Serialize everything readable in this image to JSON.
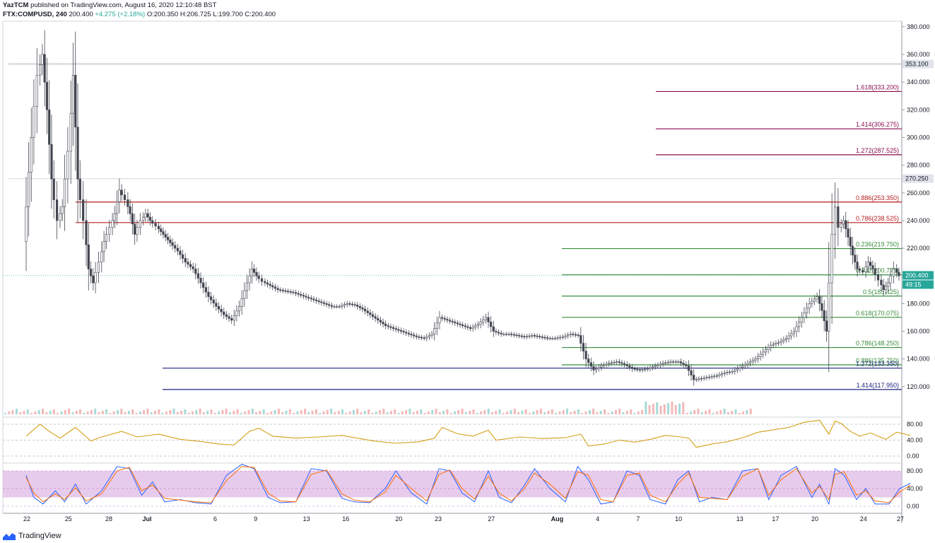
{
  "header": {
    "author": "YazTCM",
    "published": "published on TradingView.com, August 16, 2020 12:10:48 BST",
    "symbol": "FTX:COMPUSD, 240",
    "price": "200.400",
    "change": "+4.275 (+2.18%)",
    "o": "O:200.350",
    "h": "H:206.725",
    "l": "L:199.700",
    "c": "C:200.400"
  },
  "branding": {
    "logo_text": "TradingView",
    "logo_icon": "tradingview-icon"
  },
  "colors": {
    "up": "#26a69a",
    "down": "#ef5350",
    "candle": "#434651",
    "fib_ext": "#880e4f",
    "fib_red": "#b71c1c",
    "fib_green": "#388e3c",
    "fib_blue": "#1a237e",
    "rsi": "#d4a017",
    "stoch_k": "#2962ff",
    "stoch_d": "#ff6d00",
    "stoch_band": "#e1bee7"
  },
  "chart_data": {
    "type": "candlestick",
    "symbol": "FTX:COMPUSD",
    "interval": "240",
    "y_axis": {
      "ticks": [
        "380.000",
        "360.000",
        "340.000",
        "320.000",
        "300.000",
        "280.000",
        "260.000",
        "240.000",
        "220.000",
        "200.000",
        "180.000",
        "160.000",
        "140.000",
        "120.000"
      ],
      "range": [
        100,
        384
      ]
    },
    "x_axis": {
      "ticks": [
        "22",
        "25",
        "28",
        "Jul",
        "6",
        "9",
        "13",
        "16",
        "20",
        "23",
        "27",
        "Aug",
        "4",
        "7",
        "10",
        "13",
        "17",
        "20",
        "24",
        "27"
      ]
    },
    "price_labels": [
      {
        "text": "353.100",
        "value": 353.1
      },
      {
        "text": "270.250",
        "value": 270.25
      },
      {
        "text": "200.400",
        "value": 200.4,
        "highlight": true
      },
      {
        "text": "49:15",
        "value": 0
      }
    ],
    "levels": [
      {
        "label": "1.618(333.200)",
        "value": 333.2,
        "color": "fib_ext",
        "from_day": 22.8
      },
      {
        "label": "1.414(306.275)",
        "value": 306.275,
        "color": "fib_ext",
        "from_day": 22.8
      },
      {
        "label": "1.272(287.525)",
        "value": 287.525,
        "color": "fib_ext",
        "from_day": 22.8
      },
      {
        "label": "0.886(253.350)",
        "value": 253.35,
        "color": "fib_red",
        "from_day": -4.5
      },
      {
        "label": "0.786(238.525)",
        "value": 238.525,
        "color": "fib_red",
        "from_day": -4.5
      },
      {
        "label": "0.236(219.750)",
        "value": 219.75,
        "color": "fib_green",
        "from_day": 18.8
      },
      {
        "label": "0.382(200.775)",
        "value": 200.775,
        "color": "fib_green",
        "from_day": 18.8
      },
      {
        "label": "0.5(185.425)",
        "value": 185.425,
        "color": "fib_green",
        "from_day": 18.8
      },
      {
        "label": "0.618(170.075)",
        "value": 170.075,
        "color": "fib_green",
        "from_day": 18.8
      },
      {
        "label": "0.786(148.250)",
        "value": 148.25,
        "color": "fib_green",
        "from_day": 18.8
      },
      {
        "label": "0.886(135.750)",
        "value": 135.75,
        "color": "fib_green",
        "from_day": 18.8
      },
      {
        "label": "1.272(133.350)",
        "value": 133.35,
        "color": "fib_blue",
        "from_day": -1.2
      },
      {
        "label": "1.414(117.950)",
        "value": 117.95,
        "color": "fib_blue",
        "from_day": -1.2
      }
    ],
    "ohlc_path": [
      [
        -9.5,
        225
      ],
      [
        -9.0,
        300
      ],
      [
        -8.6,
        345
      ],
      [
        -8.3,
        360
      ],
      [
        -8.0,
        320
      ],
      [
        -7.7,
        270
      ],
      [
        -7.3,
        240
      ],
      [
        -7.0,
        250
      ],
      [
        -6.6,
        290
      ],
      [
        -6.3,
        345
      ],
      [
        -6.0,
        270
      ],
      [
        -5.6,
        240
      ],
      [
        -5.3,
        205
      ],
      [
        -5.0,
        195
      ],
      [
        -4.6,
        210
      ],
      [
        -4.3,
        225
      ],
      [
        -3.9,
        235
      ],
      [
        -3.6,
        245
      ],
      [
        -3.3,
        262
      ],
      [
        -2.9,
        255
      ],
      [
        -2.6,
        245
      ],
      [
        -2.3,
        230
      ],
      [
        -1.9,
        240
      ],
      [
        -1.6,
        245
      ],
      [
        -1.3,
        240
      ],
      [
        -0.9,
        236
      ],
      [
        -0.6,
        232
      ],
      [
        -0.3,
        228
      ],
      [
        0.0,
        224
      ],
      [
        0.5,
        218
      ],
      [
        1.0,
        210
      ],
      [
        1.5,
        205
      ],
      [
        2.0,
        195
      ],
      [
        2.5,
        185
      ],
      [
        3.0,
        178
      ],
      [
        3.5,
        172
      ],
      [
        4.0,
        168
      ],
      [
        4.5,
        178
      ],
      [
        5.0,
        195
      ],
      [
        5.3,
        205
      ],
      [
        5.6,
        200
      ],
      [
        6.0,
        196
      ],
      [
        6.5,
        193
      ],
      [
        7.0,
        190
      ],
      [
        7.5,
        189
      ],
      [
        8.0,
        188
      ],
      [
        8.5,
        186
      ],
      [
        9.0,
        184
      ],
      [
        9.5,
        182
      ],
      [
        10.0,
        180
      ],
      [
        10.5,
        178
      ],
      [
        11.0,
        178
      ],
      [
        11.5,
        180
      ],
      [
        12.0,
        179
      ],
      [
        12.5,
        176
      ],
      [
        13.0,
        172
      ],
      [
        13.5,
        168
      ],
      [
        14.0,
        164
      ],
      [
        14.5,
        162
      ],
      [
        15.0,
        160
      ],
      [
        15.5,
        158
      ],
      [
        16.0,
        156
      ],
      [
        16.5,
        155
      ],
      [
        17.0,
        158
      ],
      [
        17.5,
        170
      ],
      [
        18.0,
        168
      ],
      [
        18.5,
        166
      ],
      [
        19.0,
        164
      ],
      [
        19.5,
        162
      ],
      [
        20.0,
        165
      ],
      [
        20.5,
        170
      ],
      [
        21.0,
        160
      ],
      [
        21.5,
        158
      ],
      [
        22.0,
        158
      ],
      [
        22.5,
        157
      ],
      [
        23.0,
        156
      ],
      [
        23.5,
        157
      ],
      [
        24.0,
        156
      ],
      [
        24.5,
        155
      ],
      [
        25.0,
        155
      ],
      [
        25.5,
        156
      ],
      [
        26.0,
        158
      ],
      [
        26.5,
        157
      ],
      [
        27.0,
        140
      ],
      [
        27.5,
        132
      ],
      [
        28.0,
        135
      ],
      [
        28.5,
        137
      ],
      [
        29.0,
        138
      ],
      [
        29.5,
        136
      ],
      [
        30.0,
        133
      ],
      [
        30.5,
        132
      ],
      [
        31.0,
        133
      ],
      [
        31.5,
        135
      ],
      [
        32.0,
        137
      ],
      [
        32.5,
        138
      ],
      [
        33.0,
        138
      ],
      [
        33.5,
        135
      ],
      [
        34.0,
        125
      ],
      [
        34.5,
        126
      ],
      [
        35.0,
        127
      ],
      [
        35.5,
        128
      ],
      [
        36.0,
        130
      ],
      [
        36.5,
        131
      ],
      [
        37.0,
        134
      ],
      [
        37.5,
        137
      ],
      [
        38.0,
        140
      ],
      [
        38.5,
        145
      ],
      [
        39.0,
        150
      ],
      [
        39.5,
        152
      ],
      [
        40.0,
        155
      ],
      [
        40.5,
        160
      ],
      [
        41.0,
        170
      ],
      [
        41.5,
        180
      ],
      [
        42.0,
        185
      ],
      [
        42.3,
        175
      ],
      [
        42.6,
        160
      ],
      [
        42.8,
        195
      ],
      [
        43.0,
        230
      ],
      [
        43.2,
        250
      ],
      [
        43.4,
        235
      ],
      [
        43.7,
        240
      ],
      [
        44.0,
        228
      ],
      [
        44.3,
        215
      ],
      [
        44.6,
        205
      ],
      [
        45.0,
        203
      ],
      [
        45.3,
        210
      ],
      [
        45.6,
        205
      ],
      [
        46.0,
        197
      ],
      [
        46.3,
        190
      ],
      [
        46.6,
        195
      ],
      [
        47.0,
        205
      ],
      [
        47.3,
        200
      ],
      [
        47.6,
        198
      ],
      [
        47.9,
        200.4
      ]
    ],
    "rsi": {
      "ticks": [
        "80.00",
        "40.00",
        "0.00"
      ],
      "points": [
        [
          -9.5,
          50
        ],
        [
          -8.6,
          80
        ],
        [
          -8.0,
          62
        ],
        [
          -7.3,
          45
        ],
        [
          -6.3,
          72
        ],
        [
          -5.3,
          38
        ],
        [
          -4.6,
          48
        ],
        [
          -3.3,
          62
        ],
        [
          -2.3,
          48
        ],
        [
          -0.9,
          55
        ],
        [
          0.5,
          42
        ],
        [
          2.0,
          36
        ],
        [
          3.0,
          30
        ],
        [
          4.0,
          28
        ],
        [
          5.0,
          62
        ],
        [
          5.6,
          70
        ],
        [
          6.5,
          50
        ],
        [
          8.0,
          45
        ],
        [
          9.5,
          48
        ],
        [
          11.0,
          52
        ],
        [
          13.0,
          38
        ],
        [
          14.5,
          32
        ],
        [
          16.0,
          36
        ],
        [
          17.0,
          45
        ],
        [
          17.5,
          72
        ],
        [
          18.5,
          56
        ],
        [
          19.5,
          50
        ],
        [
          20.5,
          65
        ],
        [
          21.0,
          40
        ],
        [
          22.5,
          48
        ],
        [
          24.0,
          44
        ],
        [
          25.5,
          46
        ],
        [
          26.5,
          55
        ],
        [
          27.0,
          25
        ],
        [
          28.0,
          30
        ],
        [
          29.0,
          40
        ],
        [
          30.0,
          35
        ],
        [
          31.0,
          42
        ],
        [
          32.0,
          52
        ],
        [
          33.0,
          48
        ],
        [
          33.5,
          45
        ],
        [
          34.0,
          22
        ],
        [
          35.0,
          30
        ],
        [
          36.0,
          36
        ],
        [
          37.0,
          46
        ],
        [
          38.0,
          60
        ],
        [
          39.0,
          66
        ],
        [
          40.0,
          72
        ],
        [
          41.0,
          85
        ],
        [
          42.0,
          90
        ],
        [
          42.6,
          55
        ],
        [
          43.0,
          88
        ],
        [
          43.4,
          82
        ],
        [
          44.0,
          62
        ],
        [
          44.6,
          50
        ],
        [
          45.3,
          58
        ],
        [
          46.3,
          42
        ],
        [
          47.0,
          60
        ],
        [
          47.9,
          52
        ]
      ]
    },
    "stoch": {
      "ticks": [
        "80.00",
        "40.00",
        "0.00"
      ],
      "band": [
        20,
        80
      ],
      "k": [
        [
          -9.5,
          70
        ],
        [
          -9.0,
          20
        ],
        [
          -8.4,
          5
        ],
        [
          -7.6,
          35
        ],
        [
          -7.0,
          10
        ],
        [
          -6.3,
          50
        ],
        [
          -5.6,
          5
        ],
        [
          -4.6,
          35
        ],
        [
          -3.6,
          90
        ],
        [
          -2.8,
          85
        ],
        [
          -2.0,
          25
        ],
        [
          -1.3,
          55
        ],
        [
          -0.5,
          10
        ],
        [
          0.5,
          15
        ],
        [
          1.5,
          8
        ],
        [
          2.5,
          5
        ],
        [
          3.5,
          70
        ],
        [
          4.5,
          95
        ],
        [
          5.3,
          85
        ],
        [
          6.2,
          20
        ],
        [
          7.0,
          8
        ],
        [
          8.0,
          10
        ],
        [
          9.0,
          85
        ],
        [
          10.0,
          80
        ],
        [
          11.0,
          18
        ],
        [
          11.8,
          10
        ],
        [
          12.8,
          8
        ],
        [
          13.8,
          40
        ],
        [
          14.5,
          80
        ],
        [
          15.5,
          30
        ],
        [
          16.5,
          5
        ],
        [
          17.3,
          85
        ],
        [
          18.0,
          80
        ],
        [
          18.8,
          30
        ],
        [
          19.6,
          10
        ],
        [
          20.5,
          80
        ],
        [
          21.2,
          20
        ],
        [
          22.0,
          8
        ],
        [
          22.8,
          45
        ],
        [
          23.5,
          85
        ],
        [
          24.5,
          40
        ],
        [
          25.5,
          10
        ],
        [
          26.3,
          90
        ],
        [
          27.0,
          60
        ],
        [
          27.8,
          5
        ],
        [
          28.6,
          10
        ],
        [
          29.5,
          80
        ],
        [
          30.3,
          70
        ],
        [
          31.0,
          15
        ],
        [
          32.0,
          5
        ],
        [
          32.8,
          60
        ],
        [
          33.5,
          80
        ],
        [
          34.2,
          10
        ],
        [
          35.0,
          20
        ],
        [
          36.0,
          15
        ],
        [
          37.0,
          80
        ],
        [
          38.0,
          85
        ],
        [
          38.7,
          15
        ],
        [
          39.5,
          70
        ],
        [
          40.5,
          90
        ],
        [
          41.5,
          20
        ],
        [
          42.0,
          50
        ],
        [
          42.6,
          5
        ],
        [
          43.0,
          85
        ],
        [
          43.6,
          70
        ],
        [
          44.4,
          15
        ],
        [
          45.0,
          40
        ],
        [
          45.6,
          5
        ],
        [
          46.5,
          5
        ],
        [
          47.2,
          40
        ],
        [
          47.9,
          52
        ]
      ],
      "d": [
        [
          -9.5,
          65
        ],
        [
          -9.0,
          30
        ],
        [
          -8.4,
          10
        ],
        [
          -7.6,
          28
        ],
        [
          -7.0,
          15
        ],
        [
          -6.3,
          42
        ],
        [
          -5.6,
          12
        ],
        [
          -4.6,
          28
        ],
        [
          -3.6,
          80
        ],
        [
          -2.8,
          88
        ],
        [
          -2.0,
          35
        ],
        [
          -1.3,
          48
        ],
        [
          -0.5,
          18
        ],
        [
          0.5,
          14
        ],
        [
          1.5,
          10
        ],
        [
          2.5,
          8
        ],
        [
          3.5,
          58
        ],
        [
          4.5,
          90
        ],
        [
          5.3,
          88
        ],
        [
          6.2,
          30
        ],
        [
          7.0,
          12
        ],
        [
          8.0,
          10
        ],
        [
          9.0,
          72
        ],
        [
          10.0,
          82
        ],
        [
          11.0,
          28
        ],
        [
          11.8,
          14
        ],
        [
          12.8,
          10
        ],
        [
          13.8,
          32
        ],
        [
          14.5,
          70
        ],
        [
          15.5,
          40
        ],
        [
          16.5,
          12
        ],
        [
          17.3,
          72
        ],
        [
          18.0,
          82
        ],
        [
          18.8,
          40
        ],
        [
          19.6,
          16
        ],
        [
          20.5,
          68
        ],
        [
          21.2,
          30
        ],
        [
          22.0,
          12
        ],
        [
          22.8,
          38
        ],
        [
          23.5,
          75
        ],
        [
          24.5,
          50
        ],
        [
          25.5,
          18
        ],
        [
          26.3,
          78
        ],
        [
          27.0,
          70
        ],
        [
          27.8,
          15
        ],
        [
          28.6,
          10
        ],
        [
          29.5,
          70
        ],
        [
          30.3,
          75
        ],
        [
          31.0,
          25
        ],
        [
          32.0,
          10
        ],
        [
          32.8,
          50
        ],
        [
          33.5,
          75
        ],
        [
          34.2,
          20
        ],
        [
          35.0,
          18
        ],
        [
          36.0,
          15
        ],
        [
          37.0,
          68
        ],
        [
          38.0,
          85
        ],
        [
          38.7,
          25
        ],
        [
          39.5,
          60
        ],
        [
          40.5,
          85
        ],
        [
          41.5,
          30
        ],
        [
          42.0,
          45
        ],
        [
          42.6,
          15
        ],
        [
          43.0,
          72
        ],
        [
          43.6,
          78
        ],
        [
          44.4,
          25
        ],
        [
          45.0,
          35
        ],
        [
          45.6,
          12
        ],
        [
          46.5,
          8
        ],
        [
          47.2,
          32
        ],
        [
          47.9,
          48
        ]
      ]
    }
  }
}
